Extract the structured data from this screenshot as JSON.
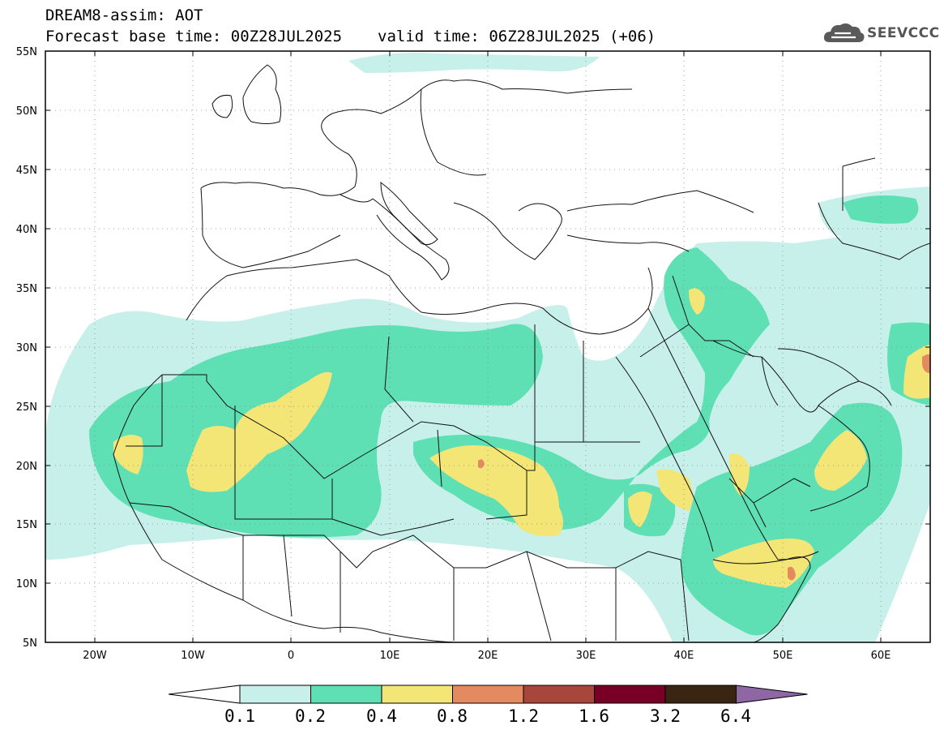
{
  "header": {
    "title": "DREAM8-assim: AOT",
    "base_time": "Forecast base time: 00Z28JUL2025",
    "valid_time": "valid time: 06Z28JUL2025 (+06)"
  },
  "logo": {
    "text": "SEEVCCC",
    "icon": "cloud-icon"
  },
  "map": {
    "lon_range": [
      -25,
      65
    ],
    "lat_range": [
      5,
      55
    ],
    "y_ticks": [
      "5N",
      "10N",
      "15N",
      "20N",
      "25N",
      "30N",
      "35N",
      "40N",
      "45N",
      "50N",
      "55N"
    ],
    "x_ticks": [
      "20W",
      "10W",
      "0",
      "10E",
      "20E",
      "30E",
      "40E",
      "50E",
      "60E"
    ],
    "grid": "dotted",
    "quantity": "AOT"
  },
  "colorbar": {
    "labels": [
      "0.1",
      "0.2",
      "0.4",
      "0.8",
      "1.2",
      "1.6",
      "3.2",
      "6.4"
    ],
    "colors": [
      "#ffffff",
      "#c7f0ea",
      "#5ee0b4",
      "#f4e577",
      "#e48a60",
      "#a7463a",
      "#780026",
      "#3a2412",
      "#8e67a4"
    ]
  }
}
